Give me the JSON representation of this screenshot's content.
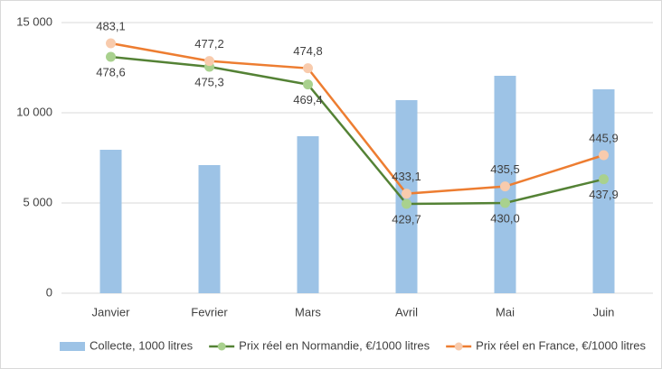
{
  "chart_data": {
    "type": "bar-line",
    "categories": [
      "Janvier",
      "Fevrier",
      "Mars",
      "Avril",
      "Mai",
      "Juin"
    ],
    "ylim": [
      0,
      15000
    ],
    "yticks": [
      0,
      {
        "value": 5000,
        "label": "5 000"
      },
      {
        "value": 10000,
        "label": "10 000"
      },
      {
        "value": 15000,
        "label": "15 000"
      }
    ],
    "y2lim": [
      400,
      490
    ],
    "grid": true,
    "legend": "bottom",
    "series": [
      {
        "name": "Collecte, 1000 litres",
        "type": "bar",
        "color": "#9dc3e6",
        "values": [
          7950,
          7100,
          8700,
          10700,
          12050,
          11300
        ]
      },
      {
        "name": "Prix réel en Normandie, €/1000 litres",
        "type": "line",
        "axis": "y2",
        "color": "#548235",
        "marker_color": "#a9d18e",
        "values": [
          478.6,
          475.3,
          469.4,
          429.7,
          430.0,
          437.9
        ],
        "value_labels": [
          "478,6",
          "475,3",
          "469,4",
          "429,7",
          "430,0",
          "437,9"
        ]
      },
      {
        "name": "Prix réel en France, €/1000 litres",
        "type": "line",
        "axis": "y2",
        "color": "#ed7d31",
        "marker_color": "#f8cbad",
        "values": [
          483.1,
          477.2,
          474.8,
          433.1,
          435.5,
          445.9
        ],
        "value_labels": [
          "483,1",
          "477,2",
          "474,8",
          "433,1",
          "435,5",
          "445,9"
        ]
      }
    ]
  }
}
